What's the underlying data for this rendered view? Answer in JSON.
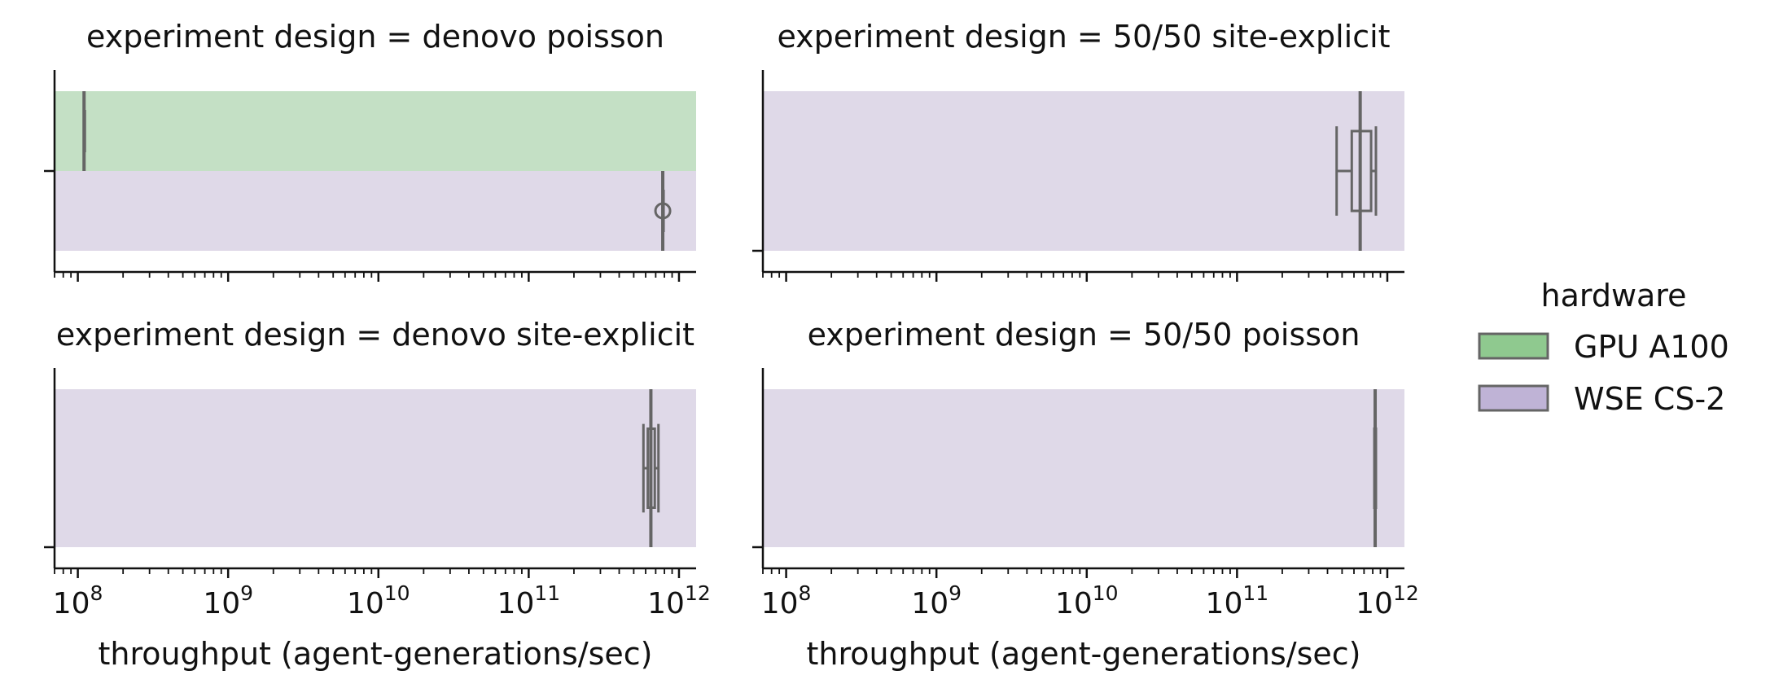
{
  "chart_data": {
    "type": "boxplot",
    "x_scale": "log",
    "xlim": [
      70000000,
      1300000000000
    ],
    "x_tick_values": [
      100000000,
      1000000000,
      10000000000,
      100000000000,
      1000000000000
    ],
    "x_tick_labels": [
      {
        "base": "10",
        "exp": "8"
      },
      {
        "base": "10",
        "exp": "9"
      },
      {
        "base": "10",
        "exp": "10"
      },
      {
        "base": "10",
        "exp": "11"
      },
      {
        "base": "10",
        "exp": "12"
      }
    ],
    "xlabel": "throughput (agent-generations/sec)",
    "legend": {
      "title": "hardware",
      "placement": "right",
      "entries": [
        {
          "label": "GPU A100",
          "color": "#8fc98f"
        },
        {
          "label": "WSE CS-2",
          "color": "#bfb3d6"
        }
      ]
    },
    "band_colors": {
      "GPU A100": "#c4e0c5",
      "WSE CS-2": "#dfd9e8"
    },
    "line_color": "#656565",
    "panels": [
      {
        "title": "experiment design = denovo poisson",
        "categories": [
          "GPU A100",
          "WSE CS-2"
        ],
        "boxes": [
          {
            "hardware": "GPU A100",
            "whislo": 110000000,
            "q1": 110000000,
            "med": 110000000,
            "q3": 110000000,
            "whishi": 110000000,
            "fliers": []
          },
          {
            "hardware": "WSE CS-2",
            "whislo": 780000000000,
            "q1": 780000000000,
            "med": 780000000000,
            "q3": 780000000000,
            "whishi": 780000000000,
            "fliers": [
              780000000000
            ]
          }
        ]
      },
      {
        "title": "experiment design = 50/50 site-explicit",
        "categories": [
          "WSE CS-2"
        ],
        "boxes": [
          {
            "hardware": "WSE CS-2",
            "whislo": 460000000000,
            "q1": 580000000000,
            "med": 660000000000,
            "q3": 780000000000,
            "whishi": 840000000000,
            "fliers": []
          }
        ]
      },
      {
        "title": "experiment design = denovo site-explicit",
        "categories": [
          "WSE CS-2"
        ],
        "boxes": [
          {
            "hardware": "WSE CS-2",
            "whislo": 580000000000,
            "q1": 620000000000,
            "med": 650000000000,
            "q3": 690000000000,
            "whishi": 730000000000,
            "fliers": []
          }
        ]
      },
      {
        "title": "experiment design = 50/50 poisson",
        "categories": [
          "WSE CS-2"
        ],
        "boxes": [
          {
            "hardware": "WSE CS-2",
            "whislo": 820000000000,
            "q1": 820000000000,
            "med": 830000000000,
            "q3": 840000000000,
            "whishi": 850000000000,
            "fliers": []
          }
        ]
      }
    ]
  }
}
